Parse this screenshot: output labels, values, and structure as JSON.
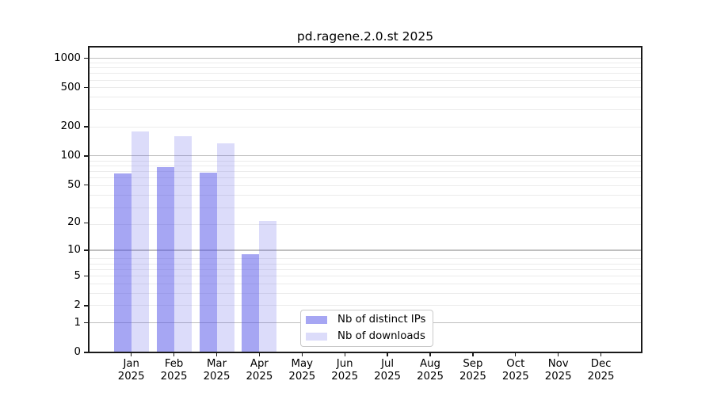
{
  "title": "pd.ragene.2.0.st 2025",
  "chart_data": {
    "type": "bar",
    "title": "pd.ragene.2.0.st 2025",
    "categories": [
      "Jan 2025",
      "Feb 2025",
      "Mar 2025",
      "Apr 2025",
      "May 2025",
      "Jun 2025",
      "Jul 2025",
      "Aug 2025",
      "Sep 2025",
      "Oct 2025",
      "Nov 2025",
      "Dec 2025"
    ],
    "series": [
      {
        "name": "Nb of distinct IPs",
        "color": "rgba(78,78,232,0.5)",
        "values": [
          66,
          76,
          67,
          9,
          0,
          0,
          0,
          0,
          0,
          0,
          0,
          0
        ]
      },
      {
        "name": "Nb of downloads",
        "color": "rgba(78,78,232,0.2)",
        "values": [
          177,
          159,
          134,
          21,
          0,
          0,
          0,
          0,
          0,
          0,
          0,
          0
        ]
      }
    ],
    "xlabel": "",
    "ylabel": "",
    "y_ticks": [
      0,
      1,
      2,
      5,
      10,
      20,
      50,
      100,
      200,
      500,
      1000
    ],
    "yscale": "symlog: y position proportional to log10(1+value), linear segment 0-1",
    "ylim": [
      0,
      1340
    ],
    "grid": {
      "orientation": "horizontal",
      "major_values": [
        1,
        10,
        100,
        1000
      ],
      "major_color": "#bfbfbf",
      "minor_color": "#ebebeb"
    },
    "legend": {
      "position": "lower center",
      "border_color": "#c9c9c9",
      "background": "#ffffff"
    },
    "spine_color": "#1a1a1a",
    "tick_color": "#1a1a1a"
  }
}
